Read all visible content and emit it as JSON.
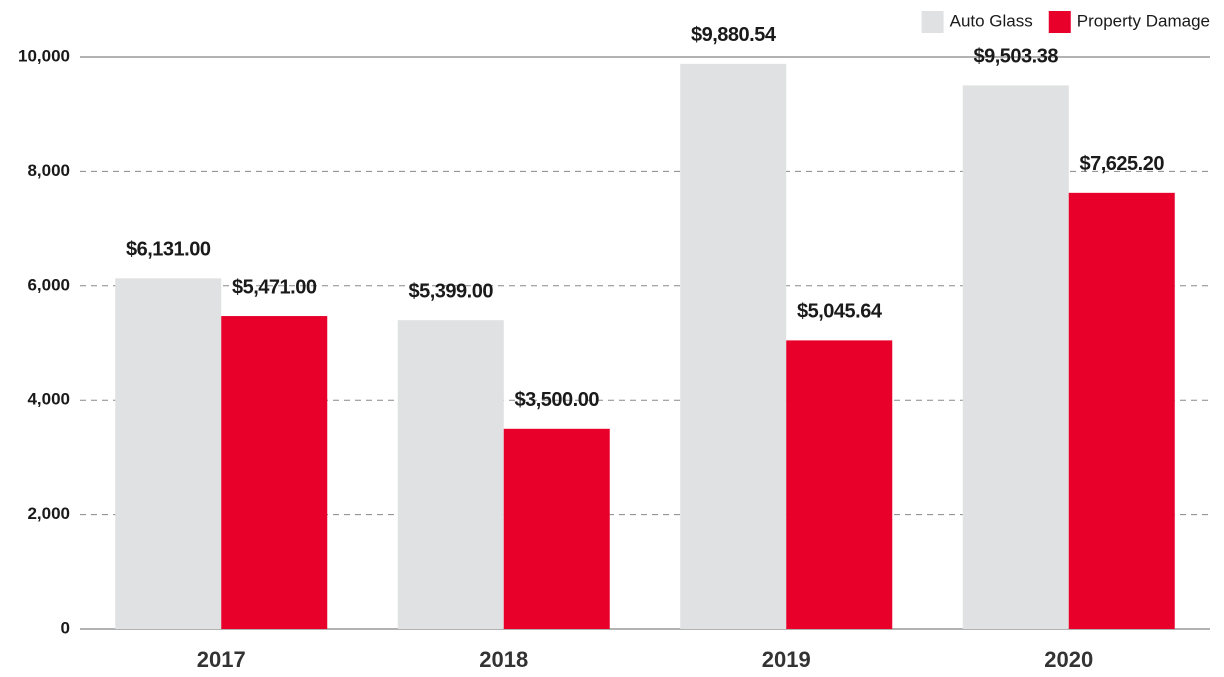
{
  "chart_data": {
    "type": "bar",
    "categories": [
      "2017",
      "2018",
      "2019",
      "2020"
    ],
    "series": [
      {
        "name": "Auto Glass",
        "color": "#e0e1e3",
        "values": [
          6131.0,
          5399.0,
          9880.54,
          9503.38
        ],
        "value_labels": [
          "$6,131.00",
          "$5,399.00",
          "$9,880.54",
          "$9,503.38"
        ]
      },
      {
        "name": "Property Damage",
        "color": "#e8002a",
        "values": [
          5471.0,
          3500.0,
          5045.64,
          7625.2
        ],
        "value_labels": [
          "$5,471.00",
          "$3,500.00",
          "$5,045.64",
          "$7,625.20"
        ]
      }
    ],
    "ylim": [
      0,
      10000
    ],
    "yticks": [
      0,
      {
        "value": 2000,
        "label": "2,000"
      },
      {
        "value": 4000,
        "label": "4,000"
      },
      {
        "value": 6000,
        "label": "6,000"
      },
      {
        "value": 8000,
        "label": "8,000"
      },
      {
        "value": 10000,
        "label": "10,000"
      }
    ],
    "grid": true,
    "legend": "top-right"
  }
}
